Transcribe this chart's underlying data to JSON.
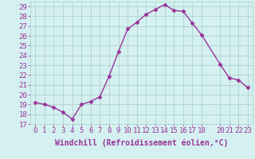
{
  "x": [
    0,
    1,
    2,
    3,
    4,
    5,
    6,
    7,
    8,
    9,
    10,
    11,
    12,
    13,
    14,
    15,
    16,
    17,
    18,
    20,
    21,
    22,
    23
  ],
  "y": [
    19.2,
    19.0,
    18.7,
    18.2,
    17.5,
    19.0,
    19.3,
    19.8,
    21.9,
    24.4,
    26.7,
    27.4,
    28.2,
    28.7,
    29.2,
    28.6,
    28.5,
    27.3,
    26.1,
    23.1,
    21.7,
    21.5,
    20.7
  ],
  "line_color": "#993399",
  "marker": "D",
  "markersize": 2.5,
  "linewidth": 1.0,
  "xlabel": "Windchill (Refroidissement éolien,°C)",
  "xlabel_fontsize": 7,
  "xlim": [
    -0.5,
    23.5
  ],
  "ylim": [
    17,
    29.5
  ],
  "yticks": [
    17,
    18,
    19,
    20,
    21,
    22,
    23,
    24,
    25,
    26,
    27,
    28,
    29
  ],
  "xticks": [
    0,
    1,
    2,
    3,
    4,
    5,
    6,
    7,
    8,
    9,
    10,
    11,
    12,
    13,
    14,
    15,
    16,
    17,
    18,
    20,
    21,
    22,
    23
  ],
  "bg_color": "#d4f0f0",
  "grid_color": "#aacccc",
  "tick_color": "#993399",
  "tick_fontsize": 6.5
}
